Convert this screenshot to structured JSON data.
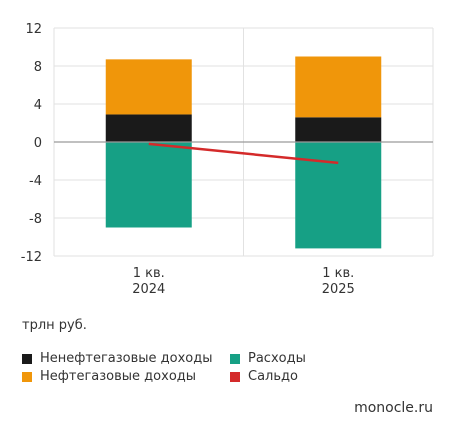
{
  "chart_data": {
    "type": "bar",
    "stacked": true,
    "categories": [
      "1 кв.\n2024",
      "1 кв.\n2025"
    ],
    "series": [
      {
        "name": "Ненефтегазовые доходы",
        "color": "#1a1a1a",
        "values": [
          2.9,
          2.6
        ]
      },
      {
        "name": "Нефтегазовые доходы",
        "color": "#f0960a",
        "values": [
          5.8,
          6.4
        ]
      },
      {
        "name": "Расходы",
        "color": "#16a085",
        "values": [
          -9.0,
          -11.2
        ]
      },
      {
        "name": "Сальдо",
        "color": "#d42a2a",
        "type": "line",
        "values": [
          -0.2,
          -2.2
        ]
      }
    ],
    "yticks": [
      12,
      8,
      4,
      0,
      -4,
      -8,
      -12
    ],
    "ylim": [
      -12,
      12
    ],
    "ylabel": "трлн руб.",
    "grid": true,
    "legend_position": "bottom-left"
  },
  "unit_label": "трлн руб.",
  "source": "monocle.ru"
}
